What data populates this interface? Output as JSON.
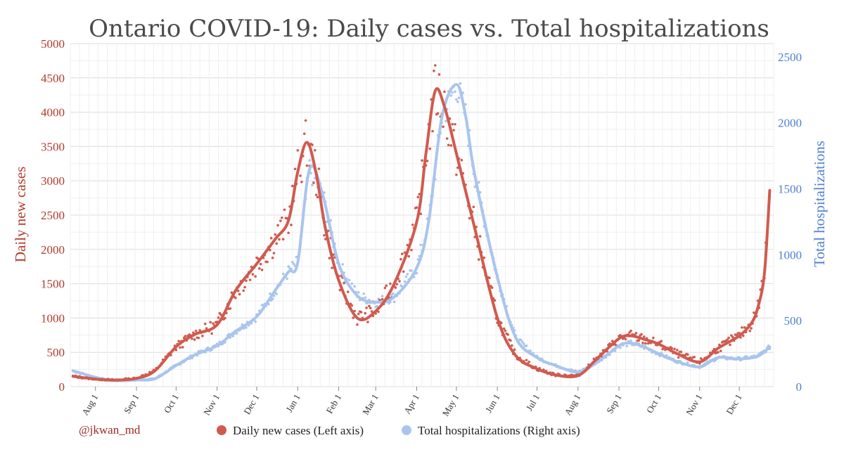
{
  "chart_data": {
    "type": "line",
    "title": "Ontario COVID-19: Daily cases vs. Total hospitalizations",
    "y_left_label": "Daily new cases",
    "y_right_label": "Total hospitalizations",
    "y_left_ticks": [
      "0",
      "500",
      "1000",
      "1500",
      "2000",
      "2500",
      "3000",
      "3500",
      "4000",
      "4500",
      "5000"
    ],
    "y_right_ticks": [
      "0",
      "500",
      "1000",
      "1500",
      "2000",
      "2500"
    ],
    "ylim_left": [
      0,
      5000
    ],
    "ylim_right": [
      0,
      2600
    ],
    "x_ticks": [
      "Aug 1",
      "Sep 1",
      "Oct 1",
      "Nov 1",
      "Dec 1",
      "Jan 1",
      "Feb 1",
      "Mar 1",
      "Apr 1",
      "May 1",
      "Jun 1",
      "Jul 1",
      "Aug 1",
      "Sep 1",
      "Oct 1",
      "Nov 1",
      "Dec 1"
    ],
    "x_domain_note": "Mid-July 2020 to late December 2021",
    "grid": true,
    "legend_position": "bottom",
    "series": [
      {
        "name": "Daily new cases (Left axis)",
        "axis": "left",
        "color": "#d05a4e",
        "x": [
          "2020-07-15",
          "2020-08-01",
          "2020-08-15",
          "2020-09-01",
          "2020-09-15",
          "2020-10-01",
          "2020-10-15",
          "2020-11-01",
          "2020-11-15",
          "2020-12-01",
          "2020-12-15",
          "2020-12-25",
          "2021-01-01",
          "2021-01-08",
          "2021-01-15",
          "2021-01-22",
          "2021-02-01",
          "2021-02-15",
          "2021-03-01",
          "2021-03-15",
          "2021-04-01",
          "2021-04-08",
          "2021-04-15",
          "2021-04-22",
          "2021-05-01",
          "2021-05-15",
          "2021-06-01",
          "2021-06-15",
          "2021-07-01",
          "2021-07-15",
          "2021-08-01",
          "2021-08-15",
          "2021-09-01",
          "2021-09-10",
          "2021-09-20",
          "2021-10-01",
          "2021-10-15",
          "2021-11-01",
          "2021-11-15",
          "2021-12-01",
          "2021-12-10",
          "2021-12-15",
          "2021-12-20",
          "2021-12-24"
        ],
        "values": [
          150,
          110,
          95,
          120,
          230,
          580,
          760,
          900,
          1400,
          1790,
          2150,
          2420,
          3130,
          3560,
          3100,
          2300,
          1550,
          1000,
          1100,
          1500,
          2400,
          3400,
          4310,
          4080,
          3400,
          2300,
          1000,
          450,
          260,
          170,
          160,
          400,
          700,
          740,
          690,
          620,
          480,
          360,
          560,
          740,
          920,
          1150,
          1650,
          2850
        ]
      },
      {
        "name": "Total hospitalizations (Right axis)",
        "axis": "right",
        "color": "#a9c5ee",
        "x": [
          "2020-07-15",
          "2020-08-01",
          "2020-08-15",
          "2020-09-01",
          "2020-09-15",
          "2020-10-01",
          "2020-10-15",
          "2020-11-01",
          "2020-11-15",
          "2020-12-01",
          "2020-12-15",
          "2020-12-25",
          "2021-01-01",
          "2021-01-10",
          "2021-01-20",
          "2021-02-01",
          "2021-02-15",
          "2021-03-01",
          "2021-03-15",
          "2021-04-01",
          "2021-04-10",
          "2021-04-20",
          "2021-05-01",
          "2021-05-08",
          "2021-05-15",
          "2021-06-01",
          "2021-06-15",
          "2021-07-01",
          "2021-07-15",
          "2021-08-01",
          "2021-08-15",
          "2021-09-01",
          "2021-09-10",
          "2021-09-20",
          "2021-10-01",
          "2021-10-15",
          "2021-11-01",
          "2021-11-15",
          "2021-12-01",
          "2021-12-15",
          "2021-12-24"
        ],
        "values": [
          120,
          70,
          45,
          50,
          60,
          160,
          240,
          310,
          420,
          530,
          730,
          870,
          940,
          1650,
          1450,
          930,
          690,
          640,
          680,
          900,
          1250,
          2040,
          2290,
          2050,
          1600,
          830,
          370,
          220,
          160,
          110,
          180,
          310,
          330,
          300,
          250,
          190,
          150,
          220,
          210,
          230,
          300
        ]
      }
    ]
  },
  "legend": {
    "credit": "@jkwan_md",
    "cases_label": "Daily new cases (Left axis)",
    "hosp_label": "Total hospitalizations (Right axis)"
  }
}
